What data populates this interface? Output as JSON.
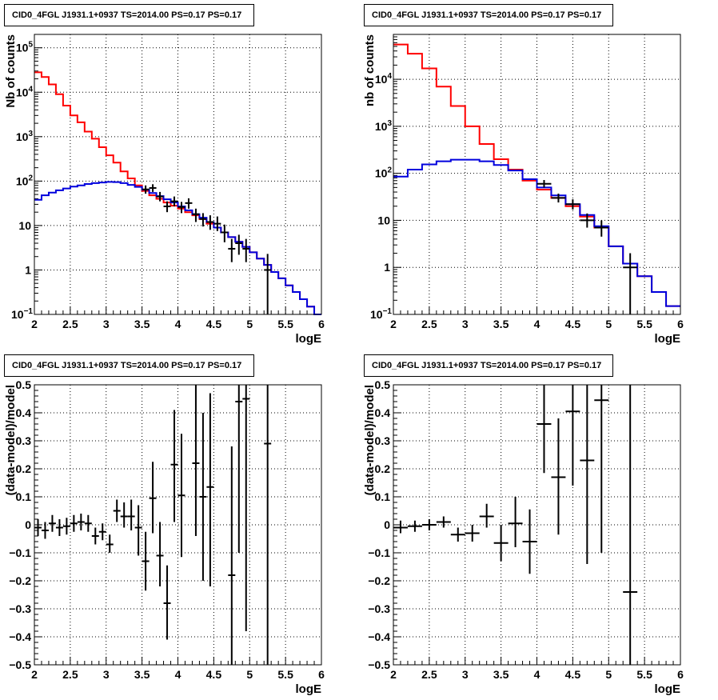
{
  "colors": {
    "model": "#ff0000",
    "background": "#0000dd",
    "data": "#000000",
    "grid": "#000000"
  },
  "chart_data": [
    {
      "type": "line",
      "title": "CID0_4FGL J1931.1+0937 TS=2014.00 PS=0.17 PS=0.17",
      "xlabel": "logE",
      "ylabel": "Nb of counts",
      "xlim": [
        2,
        6
      ],
      "ylim": [
        0.1,
        200000
      ],
      "log_y": true,
      "grid": true,
      "xticks": [
        "2",
        "2.5",
        "3",
        "3.5",
        "4",
        "4.5",
        "5",
        "5.5",
        "6"
      ],
      "yticks": [
        {
          "label": "10",
          "sup": "−1",
          "v": 0.1
        },
        {
          "label": "1",
          "sup": "",
          "v": 1
        },
        {
          "label": "10",
          "sup": "",
          "v": 10
        },
        {
          "label": "10",
          "sup": "2",
          "v": 100
        },
        {
          "label": "10",
          "sup": "3",
          "v": 1000
        },
        {
          "label": "10",
          "sup": "4",
          "v": 10000
        },
        {
          "label": "10",
          "sup": "5",
          "v": 100000
        }
      ],
      "bin_edges": [
        2,
        2.1,
        2.2,
        2.3,
        2.4,
        2.5,
        2.6,
        2.7,
        2.8,
        2.9,
        3.0,
        3.1,
        3.2,
        3.3,
        3.4,
        3.5,
        3.6,
        3.7,
        3.8,
        3.9,
        4.0,
        4.1,
        4.2,
        4.3,
        4.4,
        4.5,
        4.6,
        4.7,
        4.8,
        4.9,
        5.0,
        5.1,
        5.2,
        5.3,
        5.4,
        5.5,
        5.6,
        5.7,
        5.8,
        5.9,
        6.0
      ],
      "series": [
        {
          "role": "model",
          "values": [
            28000,
            22000,
            15000,
            9000,
            5000,
            3000,
            2100,
            1300,
            900,
            580,
            380,
            260,
            165,
            115,
            80,
            60,
            48,
            40,
            33,
            28,
            24,
            20,
            17,
            14,
            11,
            9,
            7,
            5.5,
            4.3,
            3.3,
            2.5,
            1.8,
            1.3,
            0.9,
            0.65,
            0.45,
            0.32,
            0.22,
            0.15,
            0.1
          ]
        },
        {
          "role": "background",
          "values": [
            38,
            48,
            55,
            62,
            68,
            75,
            80,
            86,
            90,
            93,
            96,
            95,
            90,
            82,
            74,
            64,
            54,
            46,
            39,
            33,
            27,
            22,
            18,
            15,
            12,
            9,
            7,
            5.5,
            4.3,
            3.3,
            2.5,
            1.8,
            1.3,
            0.9,
            0.65,
            0.45,
            0.32,
            0.22,
            0.15,
            0.1
          ]
        }
      ],
      "points": [
        {
          "x": 3.55,
          "y": 65,
          "ylo": 52,
          "yhi": 80
        },
        {
          "x": 3.65,
          "y": 70,
          "ylo": 57,
          "yhi": 85
        },
        {
          "x": 3.75,
          "y": 45,
          "ylo": 35,
          "yhi": 57
        },
        {
          "x": 3.85,
          "y": 27,
          "ylo": 20,
          "yhi": 35
        },
        {
          "x": 3.95,
          "y": 35,
          "ylo": 27,
          "yhi": 45
        },
        {
          "x": 4.05,
          "y": 26,
          "ylo": 19,
          "yhi": 34
        },
        {
          "x": 4.15,
          "y": 32,
          "ylo": 24,
          "yhi": 41
        },
        {
          "x": 4.25,
          "y": 18,
          "ylo": 12,
          "yhi": 24
        },
        {
          "x": 4.35,
          "y": 14,
          "ylo": 9.5,
          "yhi": 19
        },
        {
          "x": 4.45,
          "y": 12,
          "ylo": 8,
          "yhi": 17
        },
        {
          "x": 4.55,
          "y": 11,
          "ylo": 7.5,
          "yhi": 16
        },
        {
          "x": 4.65,
          "y": 7,
          "ylo": 4.2,
          "yhi": 10.5
        },
        {
          "x": 4.75,
          "y": 3,
          "ylo": 1.5,
          "yhi": 5
        },
        {
          "x": 4.85,
          "y": 4,
          "ylo": 2.2,
          "yhi": 6.2
        },
        {
          "x": 4.95,
          "y": 3,
          "ylo": 1.5,
          "yhi": 5
        },
        {
          "x": 5.25,
          "y": 1,
          "ylo": 0.1,
          "yhi": 2.3
        }
      ]
    },
    {
      "type": "line",
      "title": "CID0_4FGL J1931.1+0937 TS=2014.00 PS=0.17 PS=0.17",
      "xlabel": "logE",
      "ylabel": "nb of counts",
      "xlim": [
        2,
        6
      ],
      "ylim": [
        0.1,
        90000
      ],
      "log_y": true,
      "grid": true,
      "xticks": [
        "2",
        "2.5",
        "3",
        "3.5",
        "4",
        "4.5",
        "5",
        "5.5",
        "6"
      ],
      "yticks": [
        {
          "label": "10",
          "sup": "−1",
          "v": 0.1
        },
        {
          "label": "1",
          "sup": "",
          "v": 1
        },
        {
          "label": "10",
          "sup": "",
          "v": 10
        },
        {
          "label": "10",
          "sup": "2",
          "v": 100
        },
        {
          "label": "10",
          "sup": "3",
          "v": 1000
        },
        {
          "label": "10",
          "sup": "4",
          "v": 10000
        }
      ],
      "bin_edges": [
        2,
        2.2,
        2.4,
        2.6,
        2.8,
        3.0,
        3.2,
        3.4,
        3.6,
        3.8,
        4.0,
        4.2,
        4.4,
        4.6,
        4.8,
        5.0,
        5.2,
        5.4,
        5.6,
        5.8,
        6.0
      ],
      "series": [
        {
          "role": "model",
          "values": [
            55000,
            35000,
            17000,
            7000,
            2700,
            1000,
            420,
            200,
            120,
            70,
            45,
            30,
            20,
            12,
            7,
            2.8,
            1.2,
            0.65,
            0.3,
            0.15
          ]
        },
        {
          "role": "background",
          "values": [
            85,
            120,
            155,
            180,
            195,
            195,
            180,
            150,
            115,
            75,
            50,
            34,
            22,
            13,
            7.5,
            2.8,
            1.2,
            0.65,
            0.3,
            0.15
          ]
        }
      ],
      "points": [
        {
          "x": 4.1,
          "y": 60,
          "ylo": 50,
          "yhi": 72
        },
        {
          "x": 4.3,
          "y": 30,
          "ylo": 24,
          "yhi": 37
        },
        {
          "x": 4.5,
          "y": 22,
          "ylo": 17,
          "yhi": 28
        },
        {
          "x": 4.7,
          "y": 10,
          "ylo": 7,
          "yhi": 14
        },
        {
          "x": 4.9,
          "y": 7,
          "ylo": 4.5,
          "yhi": 10
        },
        {
          "x": 5.3,
          "y": 1,
          "ylo": 0.1,
          "yhi": 2
        }
      ]
    },
    {
      "type": "scatter",
      "title": "CID0_4FGL J1931.1+0937 TS=2014.00 PS=0.17 PS=0.17",
      "xlabel": "logE",
      "ylabel": "(data-model)/model",
      "xlim": [
        2,
        6
      ],
      "ylim": [
        -0.5,
        0.5
      ],
      "log_y": false,
      "grid": true,
      "xticks": [
        "2",
        "2.5",
        "3",
        "3.5",
        "4",
        "4.5",
        "5",
        "5.5",
        "6"
      ],
      "yticks": [
        {
          "label": "−0.5",
          "sup": "",
          "v": -0.5
        },
        {
          "label": "−0.4",
          "sup": "",
          "v": -0.4
        },
        {
          "label": "−0.3",
          "sup": "",
          "v": -0.3
        },
        {
          "label": "−0.2",
          "sup": "",
          "v": -0.2
        },
        {
          "label": "−0.1",
          "sup": "",
          "v": -0.1
        },
        {
          "label": "0",
          "sup": "",
          "v": 0
        },
        {
          "label": "0.1",
          "sup": "",
          "v": 0.1
        },
        {
          "label": "0.2",
          "sup": "",
          "v": 0.2
        },
        {
          "label": "0.3",
          "sup": "",
          "v": 0.3
        },
        {
          "label": "0.4",
          "sup": "",
          "v": 0.4
        },
        {
          "label": "0.5",
          "sup": "",
          "v": 0.5
        }
      ],
      "xerr": 0.05,
      "points": [
        {
          "x": 2.05,
          "y": -0.01,
          "ylo": -0.04,
          "yhi": 0.02
        },
        {
          "x": 2.15,
          "y": -0.02,
          "ylo": -0.05,
          "yhi": 0.01
        },
        {
          "x": 2.25,
          "y": 0.005,
          "ylo": -0.025,
          "yhi": 0.035
        },
        {
          "x": 2.35,
          "y": -0.01,
          "ylo": -0.04,
          "yhi": 0.02
        },
        {
          "x": 2.45,
          "y": -0.005,
          "ylo": -0.035,
          "yhi": 0.025
        },
        {
          "x": 2.55,
          "y": 0.005,
          "ylo": -0.025,
          "yhi": 0.035
        },
        {
          "x": 2.65,
          "y": 0.01,
          "ylo": -0.02,
          "yhi": 0.04
        },
        {
          "x": 2.75,
          "y": 0.005,
          "ylo": -0.025,
          "yhi": 0.035
        },
        {
          "x": 2.85,
          "y": -0.04,
          "ylo": -0.07,
          "yhi": -0.01
        },
        {
          "x": 2.95,
          "y": -0.025,
          "ylo": -0.055,
          "yhi": 0.005
        },
        {
          "x": 3.05,
          "y": -0.07,
          "ylo": -0.1,
          "yhi": -0.035
        },
        {
          "x": 3.15,
          "y": 0.05,
          "ylo": 0.01,
          "yhi": 0.09
        },
        {
          "x": 3.25,
          "y": 0.03,
          "ylo": -0.01,
          "yhi": 0.08
        },
        {
          "x": 3.35,
          "y": 0.03,
          "ylo": -0.02,
          "yhi": 0.09
        },
        {
          "x": 3.45,
          "y": -0.01,
          "ylo": -0.11,
          "yhi": 0.07
        },
        {
          "x": 3.55,
          "y": -0.13,
          "ylo": -0.235,
          "yhi": -0.025
        },
        {
          "x": 3.65,
          "y": 0.095,
          "ylo": -0.03,
          "yhi": 0.225
        },
        {
          "x": 3.75,
          "y": -0.11,
          "ylo": -0.22,
          "yhi": 0.01
        },
        {
          "x": 3.85,
          "y": -0.28,
          "ylo": -0.41,
          "yhi": -0.145
        },
        {
          "x": 3.95,
          "y": 0.215,
          "ylo": 0.01,
          "yhi": 0.41
        },
        {
          "x": 4.05,
          "y": 0.105,
          "ylo": -0.115,
          "yhi": 0.325
        },
        {
          "x": 4.25,
          "y": 0.22,
          "ylo": -0.04,
          "yhi": 0.5
        },
        {
          "x": 4.35,
          "y": 0.1,
          "ylo": -0.2,
          "yhi": 0.4
        },
        {
          "x": 4.45,
          "y": 0.135,
          "ylo": -0.22,
          "yhi": 0.47
        },
        {
          "x": 4.75,
          "y": -0.18,
          "ylo": -0.5,
          "yhi": 0.28
        },
        {
          "x": 4.85,
          "y": 0.44,
          "ylo": -0.1,
          "yhi": 0.5
        },
        {
          "x": 4.95,
          "y": 0.45,
          "ylo": -0.38,
          "yhi": 0.5
        },
        {
          "x": 5.25,
          "y": 0.29,
          "ylo": -0.5,
          "yhi": 0.5
        }
      ]
    },
    {
      "type": "scatter",
      "title": "CID0_4FGL J1931.1+0937 TS=2014.00 PS=0.17 PS=0.17",
      "xlabel": "logE",
      "ylabel": "(data-model)/model",
      "xlim": [
        2,
        6
      ],
      "ylim": [
        -0.5,
        0.5
      ],
      "log_y": false,
      "grid": true,
      "xticks": [
        "2",
        "2.5",
        "3",
        "3.5",
        "4",
        "4.5",
        "5",
        "5.5",
        "6"
      ],
      "yticks": [
        {
          "label": "−0.5",
          "sup": "",
          "v": -0.5
        },
        {
          "label": "−0.4",
          "sup": "",
          "v": -0.4
        },
        {
          "label": "−0.3",
          "sup": "",
          "v": -0.3
        },
        {
          "label": "−0.2",
          "sup": "",
          "v": -0.2
        },
        {
          "label": "−0.1",
          "sup": "",
          "v": -0.1
        },
        {
          "label": "0",
          "sup": "",
          "v": 0
        },
        {
          "label": "0.1",
          "sup": "",
          "v": 0.1
        },
        {
          "label": "0.2",
          "sup": "",
          "v": 0.2
        },
        {
          "label": "0.3",
          "sup": "",
          "v": 0.3
        },
        {
          "label": "0.4",
          "sup": "",
          "v": 0.4
        },
        {
          "label": "0.5",
          "sup": "",
          "v": 0.5
        }
      ],
      "xerr": 0.1,
      "points": [
        {
          "x": 2.1,
          "y": -0.01,
          "ylo": -0.03,
          "yhi": 0.015
        },
        {
          "x": 2.3,
          "y": -0.005,
          "ylo": -0.025,
          "yhi": 0.015
        },
        {
          "x": 2.5,
          "y": 0.0,
          "ylo": -0.02,
          "yhi": 0.02
        },
        {
          "x": 2.7,
          "y": 0.01,
          "ylo": -0.01,
          "yhi": 0.03
        },
        {
          "x": 2.9,
          "y": -0.035,
          "ylo": -0.06,
          "yhi": -0.01
        },
        {
          "x": 3.1,
          "y": -0.03,
          "ylo": -0.06,
          "yhi": 0.0
        },
        {
          "x": 3.3,
          "y": 0.03,
          "ylo": -0.01,
          "yhi": 0.075
        },
        {
          "x": 3.5,
          "y": -0.065,
          "ylo": -0.13,
          "yhi": 0.0
        },
        {
          "x": 3.7,
          "y": 0.005,
          "ylo": -0.08,
          "yhi": 0.1
        },
        {
          "x": 3.9,
          "y": -0.06,
          "ylo": -0.175,
          "yhi": 0.055
        },
        {
          "x": 4.1,
          "y": 0.36,
          "ylo": 0.185,
          "yhi": 0.5
        },
        {
          "x": 4.3,
          "y": 0.17,
          "ylo": -0.035,
          "yhi": 0.38
        },
        {
          "x": 4.5,
          "y": 0.405,
          "ylo": 0.14,
          "yhi": 0.5
        },
        {
          "x": 4.7,
          "y": 0.23,
          "ylo": -0.14,
          "yhi": 0.5
        },
        {
          "x": 4.9,
          "y": 0.445,
          "ylo": -0.1,
          "yhi": 0.5
        },
        {
          "x": 5.3,
          "y": -0.24,
          "ylo": -0.5,
          "yhi": 0.5
        }
      ]
    }
  ]
}
